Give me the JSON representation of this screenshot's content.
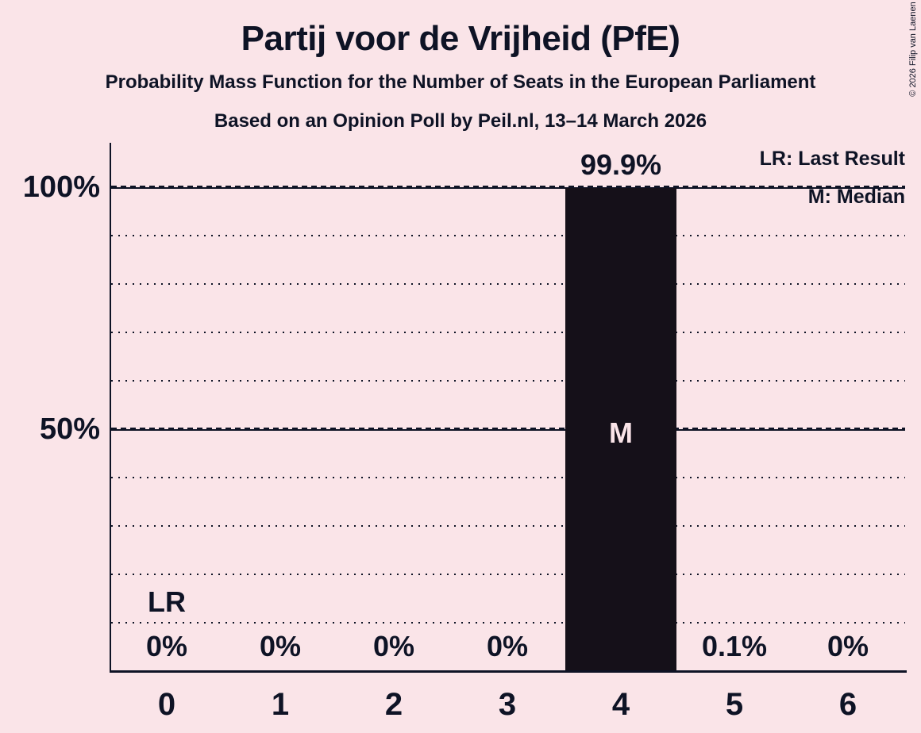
{
  "header": {
    "title": "Partij voor de Vrijheid (PfE)",
    "subtitle": "Probability Mass Function for the Number of Seats in the European Parliament",
    "poll_line": "Based on an Opinion Poll by Peil.nl, 13–14 March 2026",
    "copyright": "© 2026 Filip van Laenen"
  },
  "legend": {
    "lr": "LR: Last Result",
    "m": "M: Median"
  },
  "y_axis": {
    "tick_100": "100%",
    "tick_50": "50%"
  },
  "colors": {
    "background": "#fae4e8",
    "ink": "#0e1325",
    "bar": "#151019"
  },
  "chart_data": {
    "type": "bar",
    "title": "Probability Mass Function for the Number of Seats in the European Parliament",
    "subtitle": "Based on an Opinion Poll by Peil.nl, 13–14 March 2026",
    "categories": [
      "0",
      "1",
      "2",
      "3",
      "4",
      "5",
      "6"
    ],
    "values": [
      0,
      0,
      0,
      0,
      99.9,
      0.1,
      0
    ],
    "value_labels": [
      "0%",
      "0%",
      "0%",
      "0%",
      "99.9%",
      "0.1%",
      "0%"
    ],
    "ylim": [
      0,
      100
    ],
    "gridlines": "dotted every 10%, dash-solid at 50% and 100%",
    "legend_position": "top-right",
    "last_result_seats": 0,
    "median_seats": 4,
    "annotations": {
      "lr": "LR",
      "m": "M"
    }
  }
}
